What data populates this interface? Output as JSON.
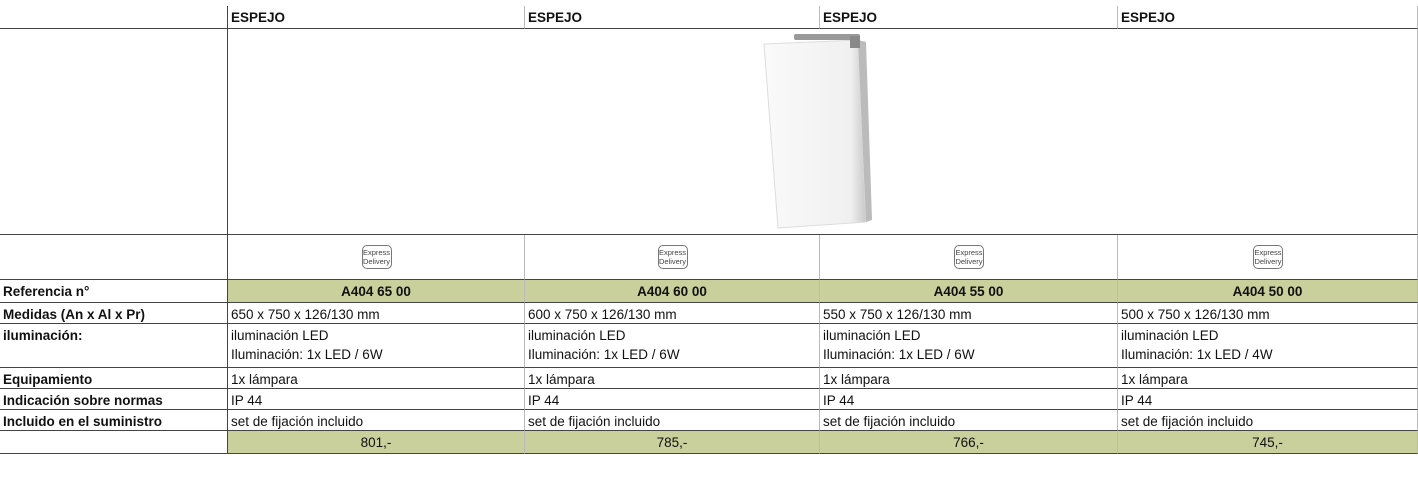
{
  "header": {
    "columns": [
      "ESPEJO",
      "ESPEJO",
      "ESPEJO",
      "ESPEJO"
    ]
  },
  "badges": [
    {
      "top": "Express",
      "bottom": "Delivery"
    },
    {
      "top": "Express",
      "bottom": "Delivery"
    },
    {
      "top": "Express",
      "bottom": "Delivery"
    },
    {
      "top": "Express",
      "bottom": "Delivery"
    }
  ],
  "rows": [
    {
      "label": "Referencia n°",
      "cells": [
        [
          "A404 65 00"
        ],
        [
          "A404 60 00"
        ],
        [
          "A404 55 00"
        ],
        [
          "A404 50 00"
        ]
      ]
    },
    {
      "label": "Medidas (An x Al x Pr)",
      "cells": [
        [
          "650 x 750 x 126/130 mm"
        ],
        [
          "600 x 750 x 126/130 mm"
        ],
        [
          "550 x 750 x 126/130 mm"
        ],
        [
          "500 x 750 x 126/130 mm"
        ]
      ]
    },
    {
      "label": "iluminación:",
      "cells": [
        [
          "iluminación LED",
          "Iluminación: 1x LED / 6W"
        ],
        [
          "iluminación LED",
          "Iluminación: 1x LED / 6W"
        ],
        [
          "iluminación LED",
          "Iluminación: 1x LED / 6W"
        ],
        [
          "iluminación LED",
          "Iluminación: 1x LED / 4W"
        ]
      ]
    },
    {
      "label": "Equipamiento",
      "cells": [
        [
          "1x lámpara"
        ],
        [
          "1x lámpara"
        ],
        [
          "1x lámpara"
        ],
        [
          "1x lámpara"
        ]
      ]
    },
    {
      "label": "Indicación sobre normas",
      "cells": [
        [
          "IP 44"
        ],
        [
          "IP 44"
        ],
        [
          "IP 44"
        ],
        [
          "IP 44"
        ]
      ]
    },
    {
      "label": "Incluido en el suministro",
      "cells": [
        [
          "set de fijación incluido"
        ],
        [
          "set de fijación incluido"
        ],
        [
          "set de fijación incluido"
        ],
        [
          "set de fijación incluido"
        ]
      ]
    }
  ],
  "prices": [
    "801,-",
    "785,-",
    "766,-",
    "745,-"
  ]
}
